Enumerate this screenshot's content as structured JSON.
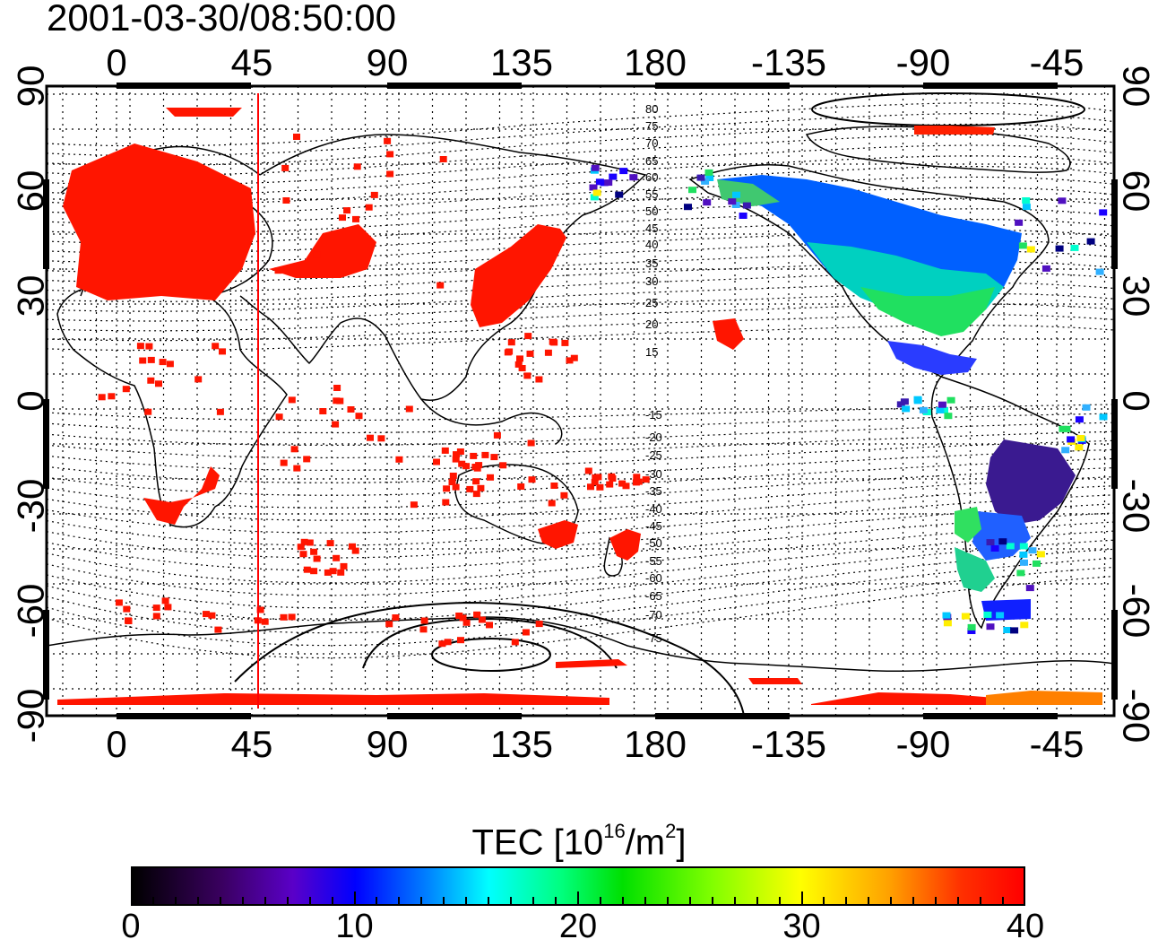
{
  "title": "2001-03-30/08:50:00",
  "map": {
    "lon_ticks": [
      "0",
      "45",
      "90",
      "135",
      "180",
      "-135",
      "-90",
      "-45"
    ],
    "lat_ticks": [
      "90",
      "60",
      "30",
      "0",
      "-30",
      "-60",
      "-90"
    ],
    "north_contour_labels": [
      "80",
      "75",
      "70",
      "65",
      "60",
      "55",
      "50",
      "45",
      "40",
      "35",
      "30",
      "25",
      "20",
      "15"
    ],
    "south_contour_labels": [
      "-15",
      "-20",
      "-25",
      "-30",
      "-35",
      "-40",
      "-45",
      "-50",
      "-55",
      "-60",
      "-65",
      "-70",
      "-75"
    ],
    "colors": {
      "terminator": "#ff0000",
      "coast": "#000000",
      "grid": "#000000"
    }
  },
  "colorbar": {
    "label_main": "TEC  [10",
    "label_exp": "16",
    "label_unit": "/m",
    "label_unit_exp": "2",
    "label_close": "]",
    "min": 0,
    "max": 40,
    "tick_labels": [
      "0",
      "10",
      "20",
      "30",
      "40"
    ]
  }
}
